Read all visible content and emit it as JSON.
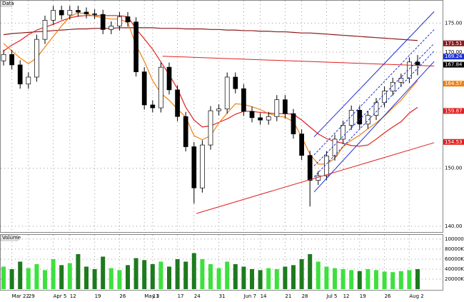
{
  "chart_data": {
    "type": "candlestick",
    "price_label": "Data",
    "volume_label": "Volume",
    "categories": [
      null,
      "Mar 22",
      null,
      "29",
      null,
      null,
      "Apr 5",
      null,
      "12",
      null,
      null,
      "19",
      null,
      null,
      "26",
      null,
      null,
      "May 3",
      "11",
      null,
      null,
      "17",
      null,
      "24",
      null,
      null,
      "31",
      null,
      null,
      "Jun 7",
      null,
      "14",
      null,
      null,
      "21",
      null,
      "28",
      null,
      null,
      "Jul 5",
      null,
      "12",
      null,
      "19",
      null,
      null,
      "26",
      null,
      null,
      "Aug 2",
      null
    ],
    "open": [
      168.5,
      169.6,
      167.8,
      164.5,
      165.7,
      172.2,
      175.5,
      177.2,
      176.4,
      177.2,
      176.9,
      176.6,
      176.5,
      173.9,
      174.5,
      176.1,
      175.2,
      166.6,
      160.9,
      160.4,
      167.4,
      163.5,
      158.9,
      153.7,
      146.6,
      154.0,
      159.9,
      160.2,
      165.7,
      163.7,
      159.8,
      158.7,
      158.3,
      158.9,
      161.8,
      159.4,
      155.9,
      152.2,
      147.9,
      148.7,
      152.1,
      155.0,
      157.4,
      160.0,
      157.6,
      159.1,
      161.3,
      163.3,
      164.8,
      165.5,
      168.3
    ],
    "high": [
      170.4,
      170.4,
      168.6,
      166.5,
      173.0,
      176.3,
      178.0,
      178.0,
      178.0,
      178.0,
      177.7,
      177.4,
      177.3,
      175.3,
      176.9,
      176.9,
      176.0,
      167.4,
      161.7,
      168.2,
      168.2,
      164.3,
      159.7,
      154.5,
      154.8,
      160.7,
      161.0,
      166.5,
      166.5,
      164.5,
      160.6,
      159.5,
      159.7,
      162.6,
      162.6,
      160.2,
      156.7,
      153.0,
      149.5,
      152.9,
      155.8,
      158.2,
      160.8,
      160.8,
      159.9,
      162.1,
      164.1,
      165.6,
      166.3,
      169.1,
      169.5
    ],
    "low": [
      167.7,
      167.0,
      163.7,
      163.7,
      164.9,
      171.4,
      174.7,
      175.6,
      175.6,
      176.1,
      175.8,
      175.7,
      173.1,
      173.1,
      173.7,
      174.4,
      165.8,
      160.1,
      159.6,
      159.6,
      162.7,
      158.1,
      152.9,
      143.9,
      145.8,
      153.2,
      159.1,
      159.4,
      162.9,
      159.0,
      157.9,
      157.5,
      157.5,
      158.1,
      158.6,
      155.1,
      151.4,
      143.4,
      147.1,
      147.9,
      151.3,
      154.2,
      156.6,
      156.8,
      156.8,
      158.3,
      160.5,
      162.5,
      164.0,
      164.7,
      166.0
    ],
    "close": [
      169.6,
      167.8,
      164.5,
      165.7,
      172.2,
      175.5,
      177.2,
      176.4,
      177.2,
      176.9,
      176.6,
      176.5,
      173.9,
      174.5,
      176.1,
      175.2,
      166.6,
      160.9,
      160.4,
      167.4,
      163.5,
      158.9,
      153.7,
      146.6,
      154.0,
      159.9,
      160.2,
      165.7,
      163.7,
      159.8,
      158.7,
      158.3,
      158.9,
      161.8,
      159.4,
      155.9,
      152.2,
      147.9,
      148.7,
      152.1,
      155.0,
      157.4,
      160.0,
      157.6,
      159.1,
      161.3,
      163.3,
      164.8,
      165.5,
      168.3,
      167.8
    ],
    "volume": [
      45000000,
      40000000,
      55000000,
      42000000,
      50000000,
      38000000,
      60000000,
      48000000,
      52000000,
      70000000,
      45000000,
      40000000,
      65000000,
      42000000,
      38000000,
      48000000,
      62000000,
      58000000,
      50000000,
      55000000,
      45000000,
      60000000,
      55000000,
      72000000,
      60000000,
      50000000,
      42000000,
      55000000,
      50000000,
      45000000,
      40000000,
      38000000,
      42000000,
      40000000,
      45000000,
      48000000,
      60000000,
      70000000,
      55000000,
      45000000,
      42000000,
      40000000,
      38000000,
      36000000,
      40000000,
      38000000,
      35000000,
      34000000,
      36000000,
      38000000,
      40000000
    ],
    "up_color": "#ffffff",
    "down_color": "#000000",
    "volume_up_color": "#3ee03e",
    "volume_down_color": "#1e7a1e",
    "lines": [
      {
        "color": "#8b1a1a",
        "values": [
          173.0,
          173.2,
          173.3,
          173.4,
          173.5,
          173.6,
          173.7,
          173.8,
          173.9,
          174.0,
          174.0,
          174.1,
          174.1,
          174.1,
          174.2,
          174.2,
          174.2,
          174.2,
          174.2,
          174.1,
          174.1,
          174.1,
          174.0,
          174.0,
          174.0,
          173.9,
          173.9,
          173.8,
          173.8,
          173.7,
          173.7,
          173.6,
          173.6,
          173.5,
          173.5,
          173.4,
          173.3,
          173.3,
          173.2,
          173.1,
          173.0,
          172.9,
          172.8,
          172.7,
          172.6,
          172.5,
          172.4,
          172.3,
          172.2,
          172.1,
          172.0
        ]
      },
      {
        "color": "#e02020",
        "values": [
          170.2,
          171.2,
          172.0,
          173.0,
          173.8,
          174.3,
          174.8,
          175.4,
          175.9,
          176.2,
          176.3,
          176.3,
          176.3,
          176.3,
          176.3,
          176.1,
          174.0,
          172.3,
          170.5,
          168.3,
          166.1,
          163.7,
          160.5,
          158.3,
          157.1,
          157.3,
          157.9,
          158.5,
          159.3,
          159.8,
          159.8,
          159.6,
          159.5,
          159.4,
          159.4,
          159.3,
          158.3,
          157.1,
          155.9,
          155.1,
          154.6,
          154.3,
          153.9,
          153.8,
          154.0,
          155.0,
          156.1,
          157.1,
          158.0,
          159.5,
          160.5
        ]
      },
      {
        "color": "#f08010",
        "values": [
          171.5,
          170.2,
          169.0,
          168.0,
          169.0,
          170.9,
          172.7,
          174.5,
          176.1,
          176.8,
          176.6,
          176.2,
          175.9,
          175.7,
          175.7,
          175.1,
          171.2,
          168.4,
          165.1,
          162.9,
          161.7,
          160.2,
          158.8,
          155.6,
          154.9,
          155.6,
          157.8,
          159.5,
          161.1,
          161.0,
          160.6,
          160.1,
          159.4,
          159.0,
          158.8,
          158.0,
          155.4,
          152.4,
          150.7,
          150.7,
          151.7,
          153.7,
          154.8,
          155.7,
          156.8,
          157.8,
          159.0,
          160.4,
          161.7,
          163.4,
          165.1
        ]
      }
    ],
    "trendlines": [
      {
        "color": "#e02020",
        "style": "solid",
        "start": [
          19.2,
          169.3
        ],
        "end": [
          52,
          167.6
        ]
      },
      {
        "color": "#e02020",
        "style": "solid",
        "start": [
          23.3,
          142.2
        ],
        "end": [
          52,
          154.4
        ]
      },
      {
        "color": "#2030d0",
        "style": "solid",
        "start": [
          37.5,
          155.4
        ],
        "end": [
          52,
          177.0
        ]
      },
      {
        "color": "#2030d0",
        "style": "dashed",
        "start": [
          37.5,
          152.3
        ],
        "end": [
          52,
          173.9
        ]
      },
      {
        "color": "#2030d0",
        "style": "dashed",
        "start": [
          37.5,
          150.4
        ],
        "end": [
          52,
          171.5
        ]
      },
      {
        "color": "#2030d0",
        "style": "dashed",
        "start": [
          37.5,
          148.5
        ],
        "end": [
          52,
          170.2
        ]
      },
      {
        "color": "#2030d0",
        "style": "solid",
        "start": [
          37.5,
          145.9
        ],
        "end": [
          52,
          168.4
        ]
      }
    ],
    "ylim": [
      139,
      178
    ],
    "yticks": [
      {
        "value": 140,
        "label": "140.00"
      },
      {
        "value": 150,
        "label": "150.00"
      },
      {
        "value": 170,
        "label": "170.00"
      },
      {
        "value": 175,
        "label": "175.00"
      }
    ],
    "markers": [
      {
        "value": 171.51,
        "color": "#8b1a1a"
      },
      {
        "value": 169.24,
        "color": "#2030d0"
      },
      {
        "value": 167.84,
        "color": "#000000"
      },
      {
        "value": 164.57,
        "color": "#f08010"
      },
      {
        "value": 159.87,
        "color": "#e02020"
      },
      {
        "value": 154.53,
        "color": "#e02020"
      }
    ],
    "vlim": [
      0,
      107000000
    ],
    "vticks": [
      {
        "value": 20000000,
        "label": "20000K"
      },
      {
        "value": 40000000,
        "label": "40000K"
      },
      {
        "value": 60000000,
        "label": "60000K"
      },
      {
        "value": 80000000,
        "label": "80000K"
      },
      {
        "value": 100000000,
        "label": "100000K"
      }
    ],
    "grid": true
  }
}
